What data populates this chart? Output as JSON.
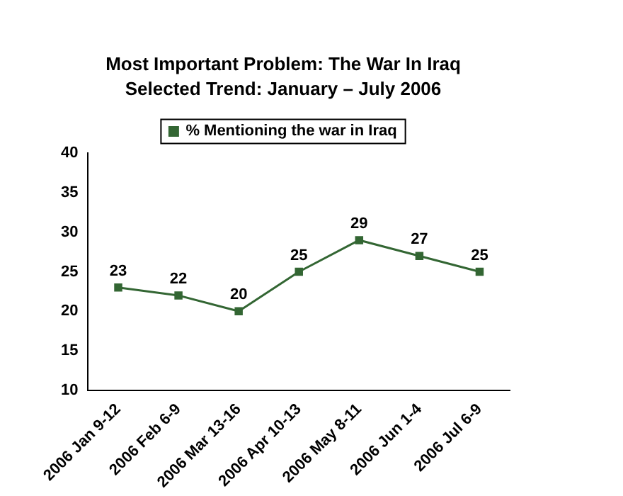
{
  "chart_data": {
    "type": "line",
    "title": "Most Important Problem: The War In Iraq",
    "subtitle": "Selected Trend: January – July 2006",
    "categories": [
      "2006 Jan 9-12",
      "2006 Feb 6-9",
      "2006 Mar 13-16",
      "2006 Apr 10-13",
      "2006 May 8-11",
      "2006 Jun 1-4",
      "2006 Jul 6-9"
    ],
    "series": [
      {
        "name": "% Mentioning the war in Iraq",
        "color": "#336633",
        "values": [
          23,
          22,
          20,
          25,
          29,
          27,
          25
        ]
      }
    ],
    "ylim": [
      10,
      40
    ],
    "yticks": [
      10,
      15,
      20,
      25,
      30,
      35,
      40
    ],
    "grid": false,
    "legend": "top",
    "marker": "square",
    "line_style": "solid",
    "data_labels": true
  }
}
